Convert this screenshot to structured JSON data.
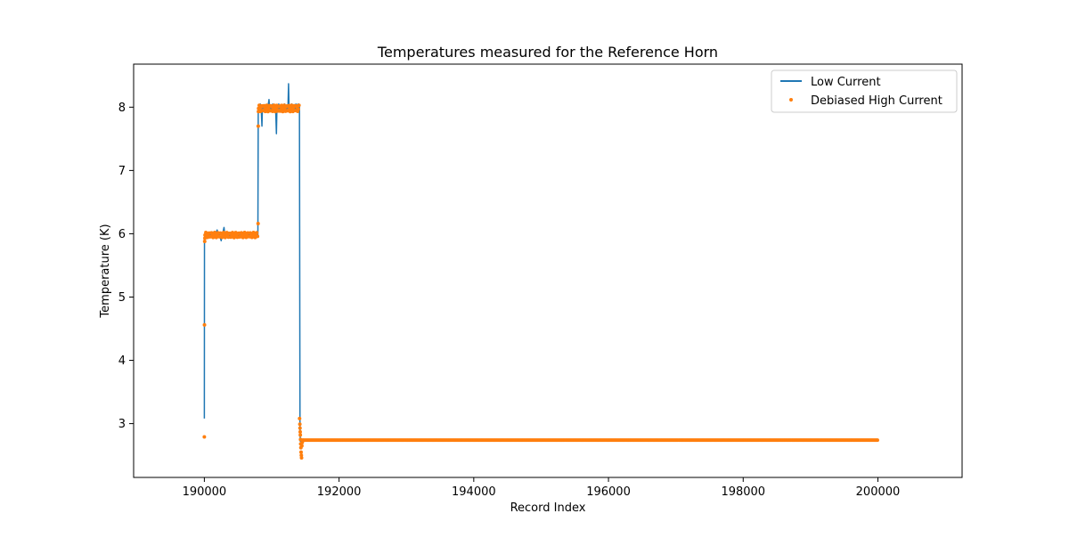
{
  "chart_data": {
    "type": "line",
    "title": "Temperatures measured for the Reference Horn",
    "xlabel": "Record Index",
    "ylabel": "Temperature (K)",
    "xlim": [
      188950,
      201250
    ],
    "ylim": [
      2.15,
      8.68
    ],
    "xticks": [
      190000,
      192000,
      194000,
      196000,
      198000,
      200000
    ],
    "yticks": [
      3,
      4,
      5,
      6,
      7,
      8
    ],
    "grid": false,
    "legend_position": "top-right",
    "series": [
      {
        "name": "Low Current",
        "kind": "line",
        "color": "#1f77b4",
        "points": [
          [
            190000,
            3.08
          ],
          [
            190002,
            5.9
          ],
          [
            190006,
            5.97
          ],
          [
            190015,
            6.02
          ],
          [
            190030,
            5.97
          ],
          [
            190045,
            6.01
          ],
          [
            190060,
            5.96
          ],
          [
            190075,
            6.02
          ],
          [
            190090,
            5.97
          ],
          [
            190100,
            6.0
          ],
          [
            190120,
            5.97
          ],
          [
            190140,
            6.03
          ],
          [
            190160,
            5.96
          ],
          [
            190175,
            6.01
          ],
          [
            190190,
            6.06
          ],
          [
            190205,
            5.97
          ],
          [
            190220,
            6.01
          ],
          [
            190235,
            5.95
          ],
          [
            190250,
            5.89
          ],
          [
            190265,
            6.0
          ],
          [
            190280,
            6.04
          ],
          [
            190292,
            6.1
          ],
          [
            190305,
            5.97
          ],
          [
            190320,
            6.01
          ],
          [
            190340,
            5.96
          ],
          [
            190360,
            6.02
          ],
          [
            190380,
            5.97
          ],
          [
            190400,
            6.01
          ],
          [
            190420,
            5.96
          ],
          [
            190440,
            5.94
          ],
          [
            190455,
            6.0
          ],
          [
            190470,
            5.97
          ],
          [
            190490,
            6.02
          ],
          [
            190510,
            5.97
          ],
          [
            190530,
            6.01
          ],
          [
            190550,
            5.96
          ],
          [
            190570,
            6.02
          ],
          [
            190590,
            5.97
          ],
          [
            190610,
            6.01
          ],
          [
            190630,
            5.97
          ],
          [
            190650,
            6.02
          ],
          [
            190670,
            5.97
          ],
          [
            190690,
            6.01
          ],
          [
            190710,
            5.97
          ],
          [
            190730,
            6.01
          ],
          [
            190750,
            5.97
          ],
          [
            190770,
            6.0
          ],
          [
            190795,
            5.98
          ],
          [
            190800,
            7.95
          ],
          [
            190810,
            8.02
          ],
          [
            190820,
            7.92
          ],
          [
            190830,
            8.05
          ],
          [
            190845,
            7.96
          ],
          [
            190855,
            7.7
          ],
          [
            190862,
            8.01
          ],
          [
            190875,
            7.94
          ],
          [
            190890,
            8.04
          ],
          [
            190905,
            7.95
          ],
          [
            190920,
            8.03
          ],
          [
            190935,
            7.93
          ],
          [
            190950,
            8.05
          ],
          [
            190960,
            8.12
          ],
          [
            190970,
            7.95
          ],
          [
            190985,
            8.04
          ],
          [
            191000,
            7.94
          ],
          [
            191015,
            8.05
          ],
          [
            191030,
            7.96
          ],
          [
            191045,
            8.03
          ],
          [
            191060,
            7.93
          ],
          [
            191070,
            7.58
          ],
          [
            191078,
            8.02
          ],
          [
            191090,
            7.94
          ],
          [
            191105,
            8.05
          ],
          [
            191120,
            7.95
          ],
          [
            191135,
            8.03
          ],
          [
            191150,
            7.92
          ],
          [
            191165,
            8.04
          ],
          [
            191180,
            7.93
          ],
          [
            191195,
            8.05
          ],
          [
            191210,
            7.95
          ],
          [
            191225,
            8.02
          ],
          [
            191240,
            7.93
          ],
          [
            191250,
            8.37
          ],
          [
            191258,
            7.94
          ],
          [
            191270,
            8.04
          ],
          [
            191285,
            7.92
          ],
          [
            191300,
            8.05
          ],
          [
            191315,
            7.93
          ],
          [
            191330,
            8.04
          ],
          [
            191345,
            7.95
          ],
          [
            191360,
            8.05
          ],
          [
            191375,
            7.93
          ],
          [
            191390,
            8.05
          ],
          [
            191400,
            7.95
          ],
          [
            191412,
            8.0
          ],
          [
            191420,
            2.9
          ],
          [
            191425,
            2.72
          ],
          [
            191460,
            2.73
          ],
          [
            200000,
            2.73
          ]
        ]
      },
      {
        "name": "Debiased High Current",
        "kind": "scatter",
        "color": "#ff7f0e",
        "segments": [
          {
            "x_start": 190010,
            "x_end": 190795,
            "step": 12,
            "y": 5.98,
            "jitter": 0.04
          },
          {
            "x_start": 190805,
            "x_end": 191410,
            "step": 10,
            "y": 7.98,
            "jitter": 0.05
          },
          {
            "x_start": 191465,
            "x_end": 200000,
            "step": 16,
            "y": 2.74,
            "jitter": 0.0
          }
        ],
        "points": [
          [
            190000,
            2.79
          ],
          [
            190002,
            4.56
          ],
          [
            190005,
            5.88
          ],
          [
            190008,
            5.93
          ],
          [
            190798,
            6.16
          ],
          [
            190800,
            7.7
          ],
          [
            190803,
            7.93
          ],
          [
            191414,
            3.08
          ],
          [
            191418,
            2.99
          ],
          [
            191420,
            2.93
          ],
          [
            191423,
            2.87
          ],
          [
            191425,
            2.82
          ],
          [
            191428,
            2.75
          ],
          [
            191430,
            2.68
          ],
          [
            191433,
            2.62
          ],
          [
            191436,
            2.55
          ],
          [
            191440,
            2.5
          ],
          [
            191443,
            2.46
          ],
          [
            191448,
            2.65
          ],
          [
            191452,
            2.7
          ],
          [
            191457,
            2.72
          ],
          [
            191462,
            2.74
          ]
        ]
      }
    ]
  }
}
